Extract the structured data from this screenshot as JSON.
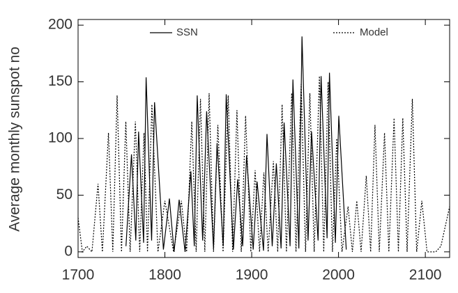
{
  "chart_data": {
    "type": "line",
    "ylabel": "Average monthly sunspot no",
    "xlim": [
      1700,
      2128
    ],
    "ylim": [
      -5,
      205
    ],
    "xticks": [
      1700,
      1800,
      1900,
      2000,
      2100
    ],
    "yticks": [
      0,
      50,
      100,
      150,
      200
    ],
    "series": [
      {
        "name": "SSN",
        "color": "#000000",
        "dash": "solid",
        "x": [
          1755.2,
          1761.5,
          1766.5,
          1769.7,
          1775.5,
          1778.4,
          1784.7,
          1788.1,
          1798.3,
          1805.2,
          1810.6,
          1816.4,
          1823.3,
          1829.9,
          1833.9,
          1837.2,
          1843.5,
          1848.1,
          1856.0,
          1860.1,
          1867.2,
          1870.6,
          1878.9,
          1883.9,
          1889.6,
          1894.1,
          1901.7,
          1906.2,
          1913.6,
          1917.6,
          1923.6,
          1928.4,
          1933.8,
          1937.4,
          1944.2,
          1947.5,
          1954.3,
          1957.9,
          1964.9,
          1968.9,
          1976.5,
          1979.9,
          1986.8,
          1989.6,
          1996.4,
          2000.3,
          2008.9
        ],
        "values": [
          5,
          86,
          10,
          106,
          8,
          154,
          10,
          132,
          2,
          47,
          0,
          46,
          0,
          71,
          5,
          138,
          10,
          124,
          3,
          96,
          5,
          139,
          2,
          64,
          5,
          85,
          2,
          62,
          1,
          104,
          5,
          78,
          3,
          114,
          5,
          152,
          3,
          190,
          10,
          106,
          10,
          155,
          12,
          158,
          8,
          120,
          2
        ]
      },
      {
        "name": "Model",
        "color": "#000000",
        "dash": "dotted",
        "x": [
          1700,
          1705,
          1710,
          1716,
          1723,
          1728,
          1735,
          1740,
          1745,
          1750,
          1755,
          1760,
          1766,
          1771,
          1776,
          1780,
          1785,
          1792,
          1800,
          1810,
          1819,
          1825,
          1831,
          1836,
          1841,
          1846,
          1851,
          1856,
          1861,
          1867,
          1873,
          1878,
          1883,
          1888,
          1893,
          1899,
          1904,
          1909,
          1914,
          1919,
          1925,
          1930,
          1935,
          1940,
          1946,
          1951,
          1957,
          1962,
          1967,
          1972,
          1978,
          1983,
          1988,
          1993,
          1998,
          2004,
          2011,
          2016,
          2021,
          2026,
          2032,
          2037,
          2042,
          2047,
          2053,
          2058,
          2064,
          2069,
          2074,
          2079,
          2085,
          2090,
          2096,
          2102,
          2112,
          2118,
          2128
        ],
        "values": [
          30,
          0,
          5,
          0,
          60,
          0,
          105,
          0,
          138,
          0,
          115,
          0,
          115,
          0,
          105,
          0,
          130,
          0,
          45,
          0,
          45,
          0,
          115,
          0,
          135,
          0,
          140,
          0,
          112,
          0,
          138,
          0,
          125,
          0,
          120,
          0,
          72,
          0,
          70,
          0,
          80,
          0,
          130,
          0,
          140,
          0,
          148,
          0,
          140,
          0,
          155,
          0,
          150,
          0,
          100,
          0,
          40,
          0,
          45,
          0,
          67,
          0,
          112,
          0,
          105,
          0,
          118,
          0,
          118,
          0,
          135,
          0,
          45,
          0,
          0,
          5,
          40
        ]
      }
    ]
  }
}
